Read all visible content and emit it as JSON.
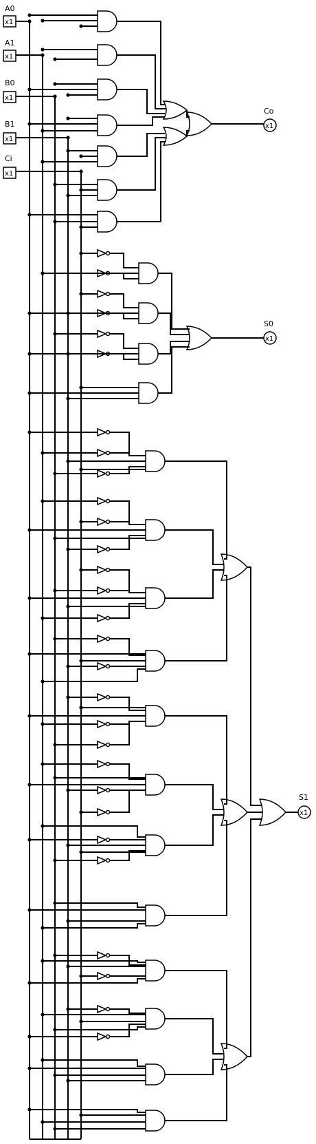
{
  "inputs": [
    {
      "name": "A0",
      "value": "x1"
    },
    {
      "name": "A1",
      "value": "x1"
    },
    {
      "name": "B0",
      "value": "x1"
    },
    {
      "name": "B1",
      "value": "x1"
    },
    {
      "name": "Ci",
      "value": "x1"
    }
  ],
  "outputs": [
    {
      "name": "Co",
      "value": "x1"
    },
    {
      "name": "S0",
      "value": "x1"
    },
    {
      "name": "S1",
      "value": "x1"
    }
  ]
}
